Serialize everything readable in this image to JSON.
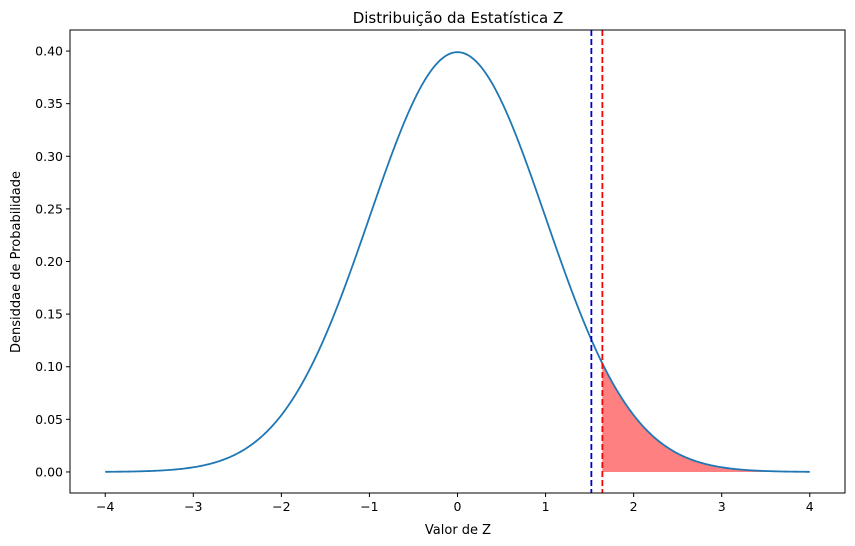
{
  "chart_data": {
    "type": "line",
    "title": "Distribuição da Estatística Z",
    "xlabel": "Valor de Z",
    "ylabel": "Densiddae de Probabilidade",
    "xlim": [
      -4.4,
      4.4
    ],
    "ylim": [
      -0.02,
      0.42
    ],
    "xticks": [
      -4,
      -3,
      -2,
      -1,
      0,
      1,
      2,
      3,
      4
    ],
    "xtick_labels": [
      "−4",
      "−3",
      "−2",
      "−1",
      "0",
      "1",
      "2",
      "3",
      "4"
    ],
    "yticks": [
      0.0,
      0.05,
      0.1,
      0.15,
      0.2,
      0.25,
      0.3,
      0.35,
      0.4
    ],
    "ytick_labels": [
      "0.00",
      "0.05",
      "0.10",
      "0.15",
      "0.20",
      "0.25",
      "0.30",
      "0.35",
      "0.40"
    ],
    "grid": false,
    "series": [
      {
        "color": "#1f77b4",
        "x": [
          -4.0,
          -3.5,
          -3.0,
          -2.5,
          -2.0,
          -1.75,
          -1.5,
          -1.25,
          -1.0,
          -0.75,
          -0.5,
          -0.25,
          0.0,
          0.25,
          0.5,
          0.75,
          1.0,
          1.25,
          1.5,
          1.75,
          2.0,
          2.5,
          3.0,
          3.5,
          4.0
        ],
        "y": [
          0.0001,
          0.0009,
          0.0044,
          0.0175,
          0.054,
          0.0863,
          0.1295,
          0.1826,
          0.242,
          0.3011,
          0.3521,
          0.3867,
          0.3989,
          0.3867,
          0.3521,
          0.3011,
          0.242,
          0.1826,
          0.1295,
          0.0863,
          0.054,
          0.0175,
          0.0044,
          0.0009,
          0.0001
        ]
      }
    ],
    "vlines": [
      {
        "x": 1.52,
        "color": "#0000cc",
        "style": "dashed"
      },
      {
        "x": 1.645,
        "color": "#ff0000",
        "style": "dashed"
      }
    ],
    "shaded_region": {
      "x": [
        1.645,
        1.75,
        2.0,
        2.25,
        2.5,
        2.75,
        3.0,
        3.5,
        4.0
      ],
      "y": [
        0.1031,
        0.0863,
        0.054,
        0.0317,
        0.0175,
        0.0091,
        0.0044,
        0.0009,
        0.0001
      ],
      "color": "#ff8080"
    }
  }
}
